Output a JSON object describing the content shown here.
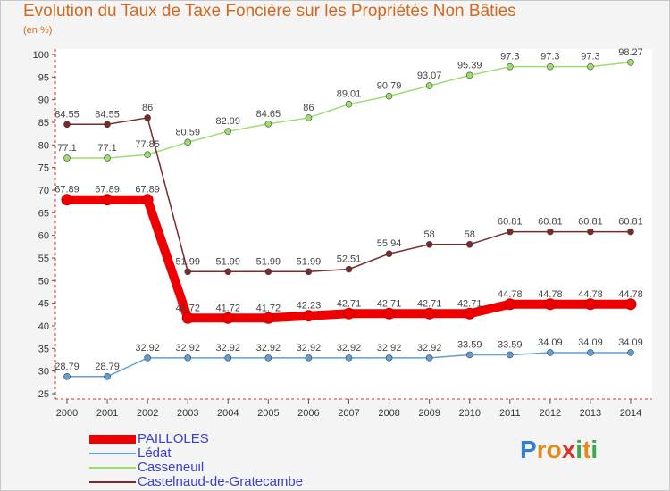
{
  "title": "Evolution du Taux de Taxe Foncière sur les Propriétés Non Bâties",
  "subtitle": "(en %)",
  "logo": {
    "text": "Proxiti",
    "letters": [
      {
        "ch": "P",
        "color": "#2f7fd3"
      },
      {
        "ch": "r",
        "color": "#e58a1f"
      },
      {
        "ch": "o",
        "color": "#e58a1f"
      },
      {
        "ch": "x",
        "color": "#d6362d"
      },
      {
        "ch": "i",
        "color": "#3aa94c"
      },
      {
        "ch": "t",
        "color": "#e58a1f"
      },
      {
        "ch": "i",
        "color": "#3aa94c"
      }
    ]
  },
  "chart_data": {
    "type": "line",
    "title": "Evolution du Taux de Taxe Foncière sur les Propriétés Non Bâties",
    "ylabel": "(en %)",
    "xlabel": "",
    "ylim": [
      25,
      100
    ],
    "yticks": [
      25,
      30,
      35,
      40,
      45,
      50,
      55,
      60,
      65,
      70,
      75,
      80,
      85,
      90,
      95,
      100
    ],
    "grid": false,
    "legend_position": "bottom-left",
    "x": [
      "2000",
      "2001",
      "2002",
      "2003",
      "2004",
      "2005",
      "2006",
      "2007",
      "2008",
      "2009",
      "2010",
      "2011",
      "2012",
      "2013",
      "2014"
    ],
    "series": [
      {
        "name": "PAILLOLES",
        "color": "#ee0000",
        "emphasis": true,
        "values": [
          67.89,
          67.89,
          67.89,
          41.72,
          41.72,
          41.72,
          42.23,
          42.71,
          42.71,
          42.71,
          42.71,
          44.78,
          44.78,
          44.78,
          44.78
        ],
        "labels": [
          "67.89",
          "67.89",
          "67.89",
          "41.72",
          "41.72",
          "41.72",
          "42.23",
          "42.71",
          "42.71",
          "42.71",
          "42.71",
          "44.78",
          "44.78",
          "44.78",
          "44.78"
        ]
      },
      {
        "name": "Lédat",
        "color": "#5f9fd6",
        "emphasis": false,
        "values": [
          28.79,
          28.79,
          32.92,
          32.92,
          32.92,
          32.92,
          32.92,
          32.92,
          32.92,
          32.92,
          33.59,
          33.59,
          34.09,
          34.09,
          34.09
        ],
        "labels": [
          "28.79",
          "28.79",
          "32.92",
          "32.92",
          "32.92",
          "32.92",
          "32.92",
          "32.92",
          "32.92",
          "32.92",
          "33.59",
          "33.59",
          "34.09",
          "34.09",
          "34.09"
        ]
      },
      {
        "name": "Casseneuil",
        "color": "#9ddc6e",
        "emphasis": false,
        "values": [
          77.1,
          77.1,
          77.85,
          80.59,
          82.99,
          84.65,
          86,
          89.01,
          90.79,
          93.07,
          95.39,
          97.3,
          97.3,
          97.3,
          98.27
        ],
        "labels": [
          "77.1",
          "77.1",
          "77.85",
          "80.59",
          "82.99",
          "84.65",
          "86",
          "89.01",
          "90.79",
          "93.07",
          "95.39",
          "97.3",
          "97.3",
          "97.3",
          "98.27"
        ]
      },
      {
        "name": "Castelnaud-de-Gratecambe",
        "color": "#7a2a2a",
        "emphasis": false,
        "values": [
          84.55,
          84.55,
          86,
          51.99,
          51.99,
          51.99,
          51.99,
          52.51,
          55.94,
          58,
          58,
          60.81,
          60.81,
          60.81,
          60.81
        ],
        "labels": [
          "84.55",
          "84.55",
          "86",
          "51.99",
          "51.99",
          "51.99",
          "51.99",
          "52.51",
          "55.94",
          "58",
          "58",
          "60.81",
          "60.81",
          "60.81",
          "60.81"
        ]
      }
    ]
  }
}
